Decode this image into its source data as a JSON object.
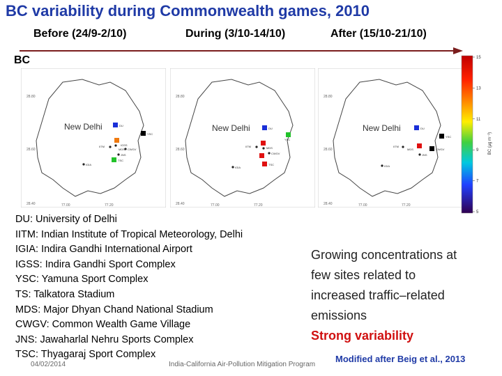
{
  "title": "BC variability during Commonwealth games, 2010",
  "periods": {
    "before": "Before (24/9-2/10)",
    "during": "During (3/10-14/10)",
    "after": "After (15/10-21/10)"
  },
  "bc_label": "BC",
  "map_labels": {
    "city": "New Delhi",
    "lat_top": "28.80",
    "lat_mid": "28.60",
    "lat_bottom": "28.40",
    "lon_left": "77.00",
    "lon_right": "77.20"
  },
  "sites": {
    "du": "DU",
    "iitm": "IITM",
    "igss": "IGSS",
    "mds": "MDS",
    "cwgv": "CWGV",
    "jns": "JNS",
    "igia": "IGIA",
    "ysc": "YSC",
    "tsc": "TSC"
  },
  "colorbar": {
    "ticks": [
      "15",
      "13",
      "11",
      "9",
      "7",
      "5"
    ],
    "unit_label": "BC (µg m⁻³)"
  },
  "legend": [
    "DU: University of Delhi",
    "IITM: Indian Institute of Tropical Meteorology, Delhi",
    "IGIA: Indira Gandhi International Airport",
    "IGSS: Indira Gandhi Sport Complex",
    "YSC: Yamuna Sport Complex",
    "TS: Talkatora Stadium",
    "MDS: Major Dhyan Chand National Stadium",
    "CWGV: Common Wealth Game Village",
    "JNS: Jawaharlal Nehru Sports Complex",
    "TSC: Thyagaraj Sport Complex"
  ],
  "conclusions": {
    "lines": [
      "Growing concentrations at",
      "few sites related to",
      "increased traffic–related",
      "emissions"
    ],
    "strong": "Strong variability"
  },
  "footer": {
    "date": "04/02/2014",
    "program": "India-California Air-Pollution Mitigation Program"
  },
  "citation": "Modified after Beig et al., 2013",
  "colors": {
    "title": "#1f3aa6",
    "arrow": "#7a1d1d",
    "strong": "#d01010",
    "marker_blue": "#1a2fd8",
    "marker_black": "#000000",
    "marker_orange": "#f07a10",
    "marker_green": "#22c22a",
    "marker_red": "#e01010"
  }
}
